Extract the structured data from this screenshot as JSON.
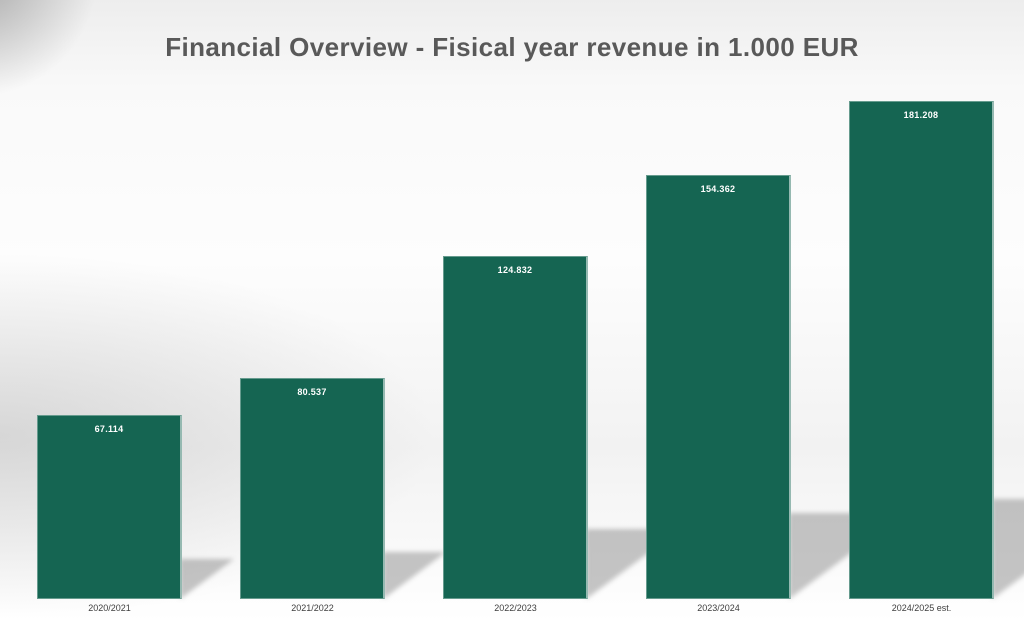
{
  "title": "Financial Overview - Fisical year revenue in 1.000 EUR",
  "colors": {
    "bar": "#156552",
    "title_text": "#595959",
    "value_label": "#ffffff",
    "category_label": "#3d3d3d"
  },
  "chart_data": {
    "type": "bar",
    "title": "Financial Overview - Fisical year revenue in 1.000 EUR",
    "categories": [
      "2020/2021",
      "2021/2022",
      "2022/2023",
      "2023/2024",
      "2024/2025 est."
    ],
    "values": [
      67114,
      80537,
      124832,
      154362,
      181208
    ],
    "value_labels": [
      "67.114",
      "80.537",
      "124.832",
      "154.362",
      "181.208"
    ],
    "unit": "1.000 EUR",
    "xlabel": "",
    "ylabel": "",
    "ylim": [
      0,
      181208
    ],
    "grid": false,
    "legend": false,
    "bar_color": "#156552",
    "value_labels_position": "inside-top",
    "shadow": "perspective-right"
  }
}
